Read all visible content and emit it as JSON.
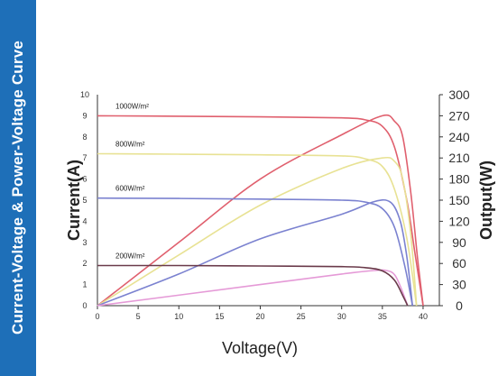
{
  "banner": {
    "title": "Current-Voltage & Power-Voltage Curve",
    "color": "#1e6fb8"
  },
  "chart_data": {
    "type": "line",
    "title": "",
    "xlabel": "Voltage(V)",
    "ylabel_left": "Current(A)",
    "ylabel_right": "Output(W)",
    "xlim": [
      0,
      42
    ],
    "ylim_left": [
      0,
      10
    ],
    "ylim_right": [
      0,
      300
    ],
    "x_ticks": [
      "0",
      "5",
      "10",
      "15",
      "20",
      "25",
      "30",
      "35",
      "40"
    ],
    "y_left_ticks": [
      "0",
      "1",
      "2",
      "3",
      "4",
      "5",
      "6",
      "7",
      "8",
      "9",
      "10"
    ],
    "y_right_ticks": [
      "0",
      "30",
      "60",
      "90",
      "120",
      "150",
      "180",
      "210",
      "240",
      "270",
      "300"
    ],
    "grid": false,
    "legend": "inline labels",
    "series": [
      {
        "name": "1000W/m²",
        "color": "#e0606e",
        "iv": [
          [
            0,
            9.0
          ],
          [
            10,
            8.98
          ],
          [
            20,
            8.95
          ],
          [
            30,
            8.9
          ],
          [
            33,
            8.8
          ],
          [
            35,
            8.5
          ],
          [
            36.5,
            7.5
          ],
          [
            38,
            5.0
          ],
          [
            39,
            2.5
          ],
          [
            40,
            0
          ]
        ],
        "pv": [
          [
            0,
            0
          ],
          [
            10,
            90
          ],
          [
            20,
            180
          ],
          [
            30,
            243
          ],
          [
            35,
            270
          ],
          [
            36.5,
            262
          ],
          [
            37.5,
            240
          ],
          [
            38.5,
            160
          ],
          [
            39.3,
            70
          ],
          [
            40,
            0
          ]
        ]
      },
      {
        "name": "800W/m²",
        "color": "#e8e294",
        "iv": [
          [
            0,
            7.2
          ],
          [
            10,
            7.18
          ],
          [
            20,
            7.15
          ],
          [
            30,
            7.1
          ],
          [
            33,
            6.95
          ],
          [
            35,
            6.6
          ],
          [
            36.5,
            5.5
          ],
          [
            38,
            3.2
          ],
          [
            39.2,
            0
          ]
        ],
        "pv": [
          [
            0,
            0
          ],
          [
            10,
            72
          ],
          [
            20,
            143
          ],
          [
            30,
            195
          ],
          [
            35,
            210
          ],
          [
            36.5,
            205
          ],
          [
            37.5,
            180
          ],
          [
            38.5,
            100
          ],
          [
            39.2,
            0
          ]
        ]
      },
      {
        "name": "600W/m²",
        "color": "#7b82d0",
        "iv": [
          [
            0,
            5.1
          ],
          [
            10,
            5.08
          ],
          [
            20,
            5.05
          ],
          [
            30,
            5.0
          ],
          [
            33,
            4.9
          ],
          [
            35,
            4.6
          ],
          [
            36.5,
            3.7
          ],
          [
            37.8,
            1.8
          ],
          [
            38.7,
            0
          ]
        ],
        "pv": [
          [
            0,
            0
          ],
          [
            10,
            45
          ],
          [
            20,
            95
          ],
          [
            30,
            130
          ],
          [
            34,
            148
          ],
          [
            36,
            147
          ],
          [
            37.2,
            120
          ],
          [
            38,
            70
          ],
          [
            38.7,
            0
          ]
        ]
      },
      {
        "name": "200W/m²",
        "color": "#6a3a4a",
        "iv": [
          [
            0,
            1.9
          ],
          [
            10,
            1.9
          ],
          [
            20,
            1.88
          ],
          [
            30,
            1.85
          ],
          [
            33,
            1.8
          ],
          [
            35,
            1.65
          ],
          [
            36.5,
            1.2
          ],
          [
            37.6,
            0.4
          ],
          [
            38.1,
            0
          ]
        ],
        "pv": [
          [
            0,
            0
          ],
          [
            20,
            30
          ],
          [
            30,
            45
          ],
          [
            34,
            50
          ],
          [
            35.5,
            50
          ],
          [
            36.5,
            44
          ],
          [
            37.3,
            25
          ],
          [
            38.1,
            0
          ]
        ]
      }
    ],
    "pv_200_color": "#e59ad7"
  }
}
